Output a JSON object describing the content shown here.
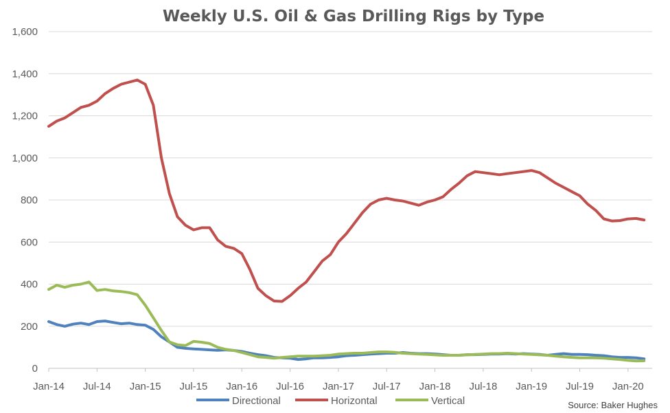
{
  "chart_data": {
    "type": "line",
    "title": "Weekly U.S. Oil & Gas Drilling Rigs by Type",
    "xlabel": "",
    "ylabel": "",
    "ylim": [
      0,
      1600
    ],
    "yticks": [
      "0",
      "200",
      "400",
      "600",
      "800",
      "1,000",
      "1,200",
      "1,400",
      "1,600"
    ],
    "xlim": [
      "2014-01",
      "2020-04"
    ],
    "xticks": [
      "Jan-14",
      "Jul-14",
      "Jan-15",
      "Jul-15",
      "Jan-16",
      "Jul-16",
      "Jan-17",
      "Jul-17",
      "Jan-18",
      "Jul-18",
      "Jan-19",
      "Jul-19",
      "Jan-20"
    ],
    "x": [
      "2014-01",
      "2014-02",
      "2014-03",
      "2014-04",
      "2014-05",
      "2014-06",
      "2014-07",
      "2014-08",
      "2014-09",
      "2014-10",
      "2014-11",
      "2014-12",
      "2015-01",
      "2015-02",
      "2015-03",
      "2015-04",
      "2015-05",
      "2015-06",
      "2015-07",
      "2015-08",
      "2015-09",
      "2015-10",
      "2015-11",
      "2015-12",
      "2016-01",
      "2016-02",
      "2016-03",
      "2016-04",
      "2016-05",
      "2016-06",
      "2016-07",
      "2016-08",
      "2016-09",
      "2016-10",
      "2016-11",
      "2016-12",
      "2017-01",
      "2017-02",
      "2017-03",
      "2017-04",
      "2017-05",
      "2017-06",
      "2017-07",
      "2017-08",
      "2017-09",
      "2017-10",
      "2017-11",
      "2017-12",
      "2018-01",
      "2018-02",
      "2018-03",
      "2018-04",
      "2018-05",
      "2018-06",
      "2018-07",
      "2018-08",
      "2018-09",
      "2018-10",
      "2018-11",
      "2018-12",
      "2019-01",
      "2019-02",
      "2019-03",
      "2019-04",
      "2019-05",
      "2019-06",
      "2019-07",
      "2019-08",
      "2019-09",
      "2019-10",
      "2019-11",
      "2019-12",
      "2020-01",
      "2020-02",
      "2020-03"
    ],
    "series": [
      {
        "name": "Directional",
        "color": "#4f81bd",
        "values": [
          222,
          208,
          200,
          210,
          215,
          208,
          222,
          225,
          218,
          212,
          215,
          208,
          205,
          185,
          150,
          125,
          100,
          95,
          92,
          90,
          88,
          86,
          88,
          85,
          80,
          72,
          65,
          60,
          52,
          50,
          48,
          42,
          45,
          50,
          50,
          52,
          55,
          60,
          62,
          65,
          68,
          70,
          72,
          72,
          75,
          72,
          70,
          70,
          68,
          65,
          62,
          62,
          65,
          65,
          66,
          68,
          68,
          70,
          68,
          70,
          68,
          66,
          62,
          66,
          70,
          66,
          66,
          65,
          62,
          60,
          55,
          52,
          52,
          50,
          45
        ]
      },
      {
        "name": "Horizontal",
        "color": "#c0504d",
        "values": [
          1150,
          1175,
          1190,
          1215,
          1240,
          1250,
          1270,
          1305,
          1330,
          1350,
          1360,
          1370,
          1350,
          1250,
          1000,
          830,
          720,
          680,
          658,
          668,
          668,
          610,
          580,
          570,
          545,
          470,
          380,
          345,
          320,
          318,
          345,
          380,
          410,
          460,
          510,
          540,
          600,
          640,
          690,
          740,
          780,
          800,
          808,
          800,
          795,
          785,
          775,
          790,
          800,
          815,
          850,
          880,
          915,
          935,
          930,
          925,
          920,
          925,
          930,
          935,
          940,
          930,
          905,
          880,
          860,
          840,
          820,
          780,
          750,
          710,
          700,
          702,
          710,
          712,
          705
        ]
      },
      {
        "name": "Vertical",
        "color": "#9bbb59",
        "values": [
          375,
          395,
          385,
          395,
          400,
          410,
          370,
          375,
          368,
          365,
          360,
          350,
          300,
          240,
          180,
          125,
          112,
          108,
          128,
          124,
          118,
          100,
          90,
          85,
          75,
          65,
          55,
          52,
          48,
          52,
          55,
          58,
          58,
          58,
          60,
          62,
          68,
          70,
          72,
          72,
          75,
          78,
          78,
          76,
          72,
          70,
          68,
          66,
          64,
          62,
          62,
          62,
          64,
          66,
          68,
          70,
          70,
          72,
          70,
          68,
          66,
          64,
          62,
          58,
          55,
          52,
          50,
          50,
          50,
          48,
          45,
          42,
          38,
          35,
          36
        ]
      }
    ],
    "legend": {
      "position": "bottom",
      "entries": [
        "Directional",
        "Horizontal",
        "Vertical"
      ]
    },
    "grid": {
      "horizontal": true,
      "vertical": false
    },
    "source": "Source: Baker Hughes"
  }
}
